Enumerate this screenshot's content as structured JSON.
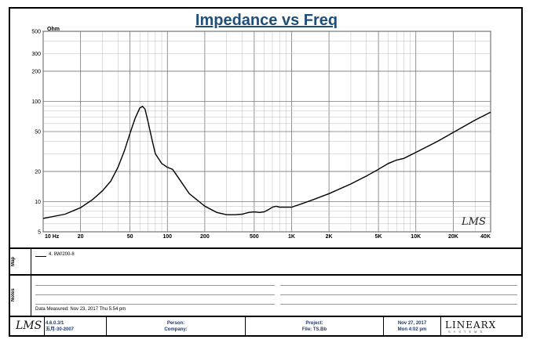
{
  "chart_data": {
    "type": "line",
    "title": "Impedance vs Freq",
    "yunit": "Ohm",
    "xscale": "log",
    "yscale": "log",
    "xlim": [
      10,
      40000
    ],
    "ylim": [
      5,
      500
    ],
    "x_ticks": [
      "10 Hz",
      "20",
      "50",
      "100",
      "200",
      "500",
      "1K",
      "2K",
      "5K",
      "10K",
      "20K",
      "40K"
    ],
    "y_ticks": [
      "500",
      "300",
      "200",
      "100",
      "50",
      "20",
      "10",
      "5"
    ],
    "grid": true,
    "series": [
      {
        "name": "4. 8W/200-8",
        "x": [
          10,
          15,
          20,
          25,
          30,
          35,
          40,
          45,
          50,
          55,
          60,
          63,
          66,
          70,
          75,
          80,
          90,
          100,
          110,
          120,
          150,
          200,
          250,
          300,
          350,
          400,
          450,
          500,
          550,
          600,
          650,
          700,
          750,
          800,
          900,
          1000,
          1200,
          1500,
          2000,
          3000,
          4000,
          5000,
          6000,
          7000,
          8000,
          10000,
          15000,
          20000,
          30000,
          40000
        ],
        "y": [
          6.8,
          7.5,
          8.7,
          10.5,
          12.8,
          16,
          22,
          32,
          48,
          68,
          86,
          89,
          84,
          62,
          42,
          30,
          24,
          22,
          21,
          18,
          12,
          9,
          7.8,
          7.4,
          7.4,
          7.5,
          7.8,
          7.9,
          7.8,
          7.9,
          8.3,
          8.8,
          9,
          8.8,
          8.8,
          8.8,
          9.5,
          10.5,
          12,
          15,
          18,
          21,
          24,
          26,
          27,
          31,
          40,
          49,
          65,
          78
        ]
      }
    ]
  },
  "legend_entry": "4. 8W/200-8",
  "logo_text": "LMS",
  "side_labels": {
    "map": "Map",
    "notes": "Notes"
  },
  "data_measured": "Data Measured: Nov 23, 2017  Thu  5:54 pm",
  "footer": {
    "version": "4.6.0.3/1",
    "version_date": "五月-30-2007",
    "person": "Person:",
    "company": "Company:",
    "project": "Project:",
    "file": "File: TS.Bb",
    "print_date": "Nov 27, 2017",
    "print_time": "Mon  4:02 pm",
    "brand": "LINEARX",
    "brand_sub": "SYSTEMS"
  }
}
